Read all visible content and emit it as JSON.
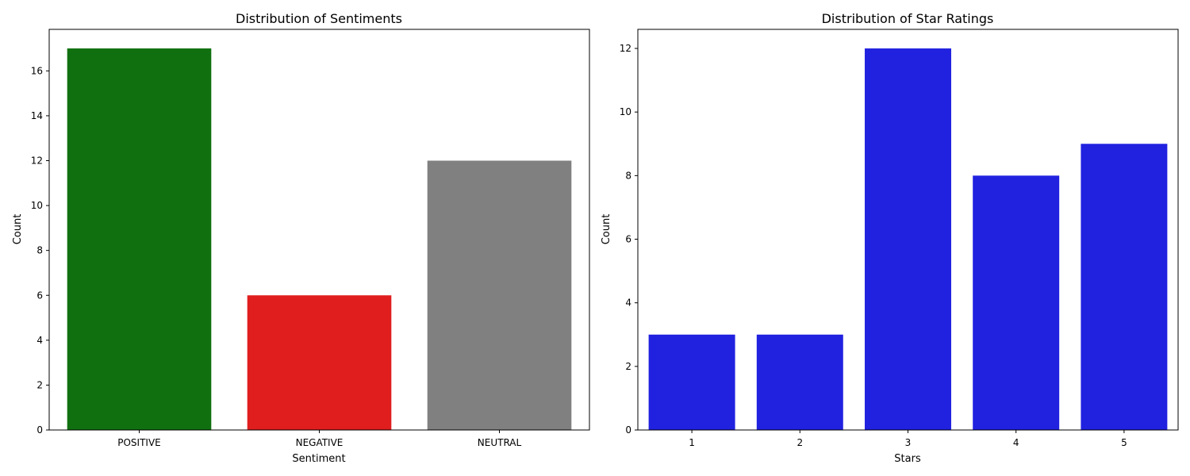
{
  "chart_data": [
    {
      "type": "bar",
      "title": "Distribution of Sentiments",
      "xlabel": "Sentiment",
      "ylabel": "Count",
      "categories": [
        "POSITIVE",
        "NEGATIVE",
        "NEUTRAL"
      ],
      "values": [
        17,
        6,
        12
      ],
      "colors": [
        "#107010",
        "#e01e1e",
        "#808080"
      ],
      "ylim": [
        0,
        17.85
      ],
      "yticks": [
        0,
        2,
        4,
        6,
        8,
        10,
        12,
        14,
        16
      ],
      "grid": false
    },
    {
      "type": "bar",
      "title": "Distribution of Star Ratings",
      "xlabel": "Stars",
      "ylabel": "Count",
      "categories": [
        "1",
        "2",
        "3",
        "4",
        "5"
      ],
      "values": [
        3,
        3,
        12,
        8,
        9
      ],
      "colors": [
        "#2121e0",
        "#2121e0",
        "#2121e0",
        "#2121e0",
        "#2121e0"
      ],
      "ylim": [
        0,
        12.6
      ],
      "yticks": [
        0,
        2,
        4,
        6,
        8,
        10,
        12
      ],
      "grid": false
    }
  ]
}
